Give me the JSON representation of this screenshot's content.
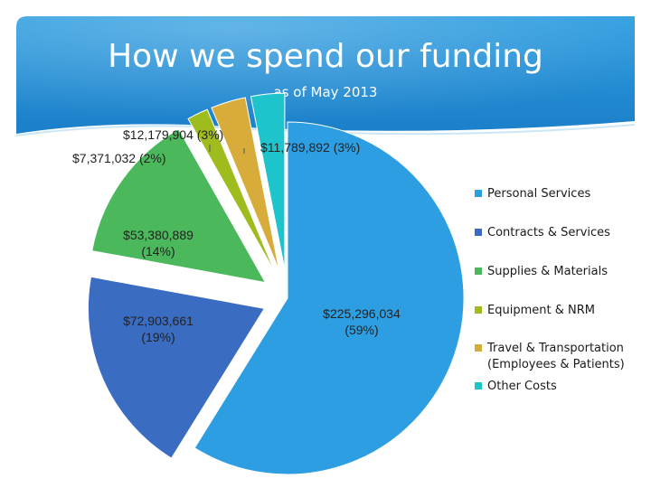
{
  "slide": {
    "title": "How we spend our funding",
    "subtitle": "as of May 2013"
  },
  "chart_data": {
    "type": "pie",
    "title": "How we spend our funding",
    "subtitle": "as of May 2013",
    "legend_position": "right",
    "exploded": true,
    "slices": [
      {
        "name": "Personal Services",
        "value": 225296034,
        "percent": 59,
        "label": "$225,296,034\n(59%)",
        "color": "#2e9ee3"
      },
      {
        "name": "Contracts & Services",
        "value": 72903661,
        "percent": 19,
        "label": "$72,903,661\n(19%)",
        "color": "#3a6cc2"
      },
      {
        "name": "Supplies & Materials",
        "value": 53380889,
        "percent": 14,
        "label": "$53,380,889\n(14%)",
        "color": "#4cb85c"
      },
      {
        "name": "Equipment & NRM",
        "value": 7371032,
        "percent": 2,
        "label": "$7,371,032 (2%)",
        "color": "#9ebc1e"
      },
      {
        "name": "Travel & Transportation (Employees & Patients)",
        "value": 12179904,
        "percent": 3,
        "label": "$12,179,904 (3%)",
        "color": "#d8ac3a"
      },
      {
        "name": "Other Costs",
        "value": 11789892,
        "percent": 3,
        "label": "$11,789,892 (3%)",
        "color": "#1ec4cc"
      }
    ]
  }
}
